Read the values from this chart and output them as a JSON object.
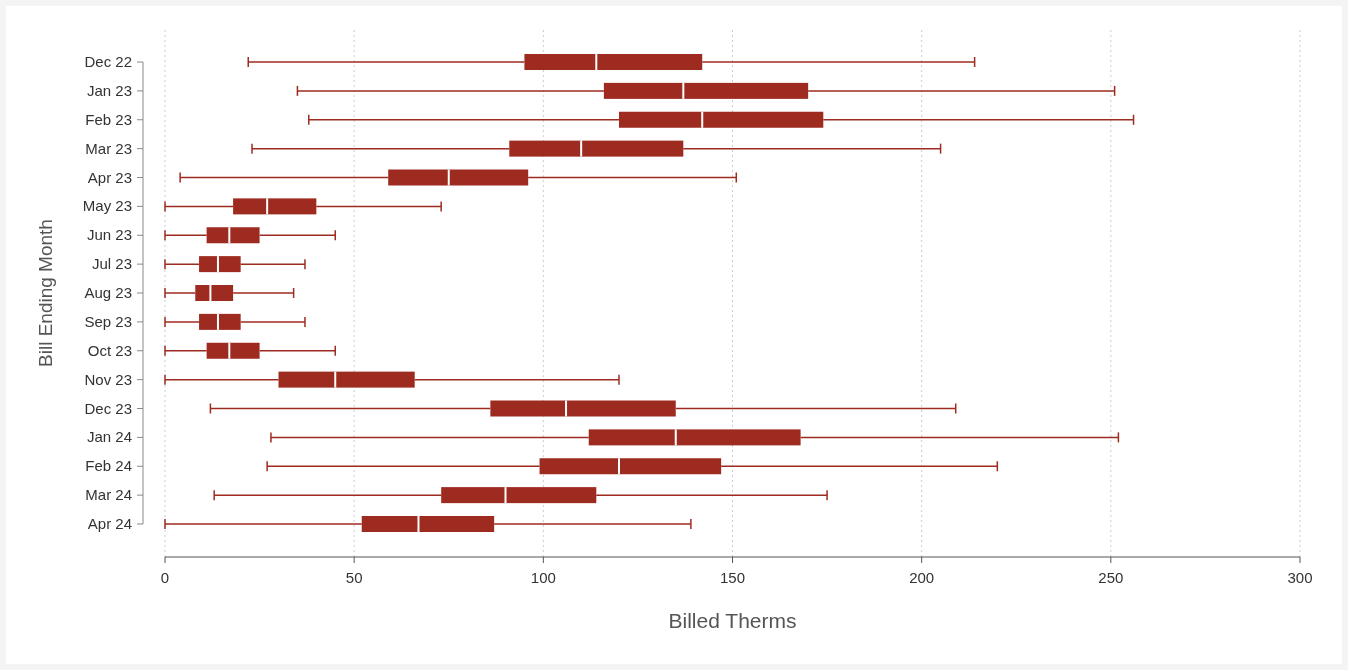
{
  "chart_data": {
    "type": "box",
    "orientation": "horizontal",
    "xlabel": "Billed Therms",
    "ylabel": "Bill Ending Month",
    "color": "#9e2b20",
    "grid": "x",
    "xlim": [
      0,
      300
    ],
    "xticks": [
      0,
      50,
      100,
      150,
      200,
      250,
      300
    ],
    "categories": [
      "Dec 22",
      "Jan 23",
      "Feb 23",
      "Mar 23",
      "Apr 23",
      "May 23",
      "Jun 23",
      "Jul 23",
      "Aug 23",
      "Sep 23",
      "Oct 23",
      "Nov 23",
      "Dec 23",
      "Jan 24",
      "Feb 24",
      "Mar 24",
      "Apr 24"
    ],
    "boxes": [
      {
        "low": 22,
        "q1": 95,
        "median": 114,
        "q3": 142,
        "high": 214
      },
      {
        "low": 35,
        "q1": 116,
        "median": 137,
        "q3": 170,
        "high": 251
      },
      {
        "low": 38,
        "q1": 120,
        "median": 142,
        "q3": 174,
        "high": 256
      },
      {
        "low": 23,
        "q1": 91,
        "median": 110,
        "q3": 137,
        "high": 205
      },
      {
        "low": 4,
        "q1": 59,
        "median": 75,
        "q3": 96,
        "high": 151
      },
      {
        "low": 0,
        "q1": 18,
        "median": 27,
        "q3": 40,
        "high": 73
      },
      {
        "low": 0,
        "q1": 11,
        "median": 17,
        "q3": 25,
        "high": 45
      },
      {
        "low": 0,
        "q1": 9,
        "median": 14,
        "q3": 20,
        "high": 37
      },
      {
        "low": 0,
        "q1": 8,
        "median": 12,
        "q3": 18,
        "high": 34
      },
      {
        "low": 0,
        "q1": 9,
        "median": 14,
        "q3": 20,
        "high": 37
      },
      {
        "low": 0,
        "q1": 11,
        "median": 17,
        "q3": 25,
        "high": 45
      },
      {
        "low": 0,
        "q1": 30,
        "median": 45,
        "q3": 66,
        "high": 120
      },
      {
        "low": 12,
        "q1": 86,
        "median": 106,
        "q3": 135,
        "high": 209
      },
      {
        "low": 28,
        "q1": 112,
        "median": 135,
        "q3": 168,
        "high": 252
      },
      {
        "low": 27,
        "q1": 99,
        "median": 120,
        "q3": 147,
        "high": 220
      },
      {
        "low": 13,
        "q1": 73,
        "median": 90,
        "q3": 114,
        "high": 175
      },
      {
        "low": 0,
        "q1": 52,
        "median": 67,
        "q3": 87,
        "high": 139
      }
    ]
  }
}
